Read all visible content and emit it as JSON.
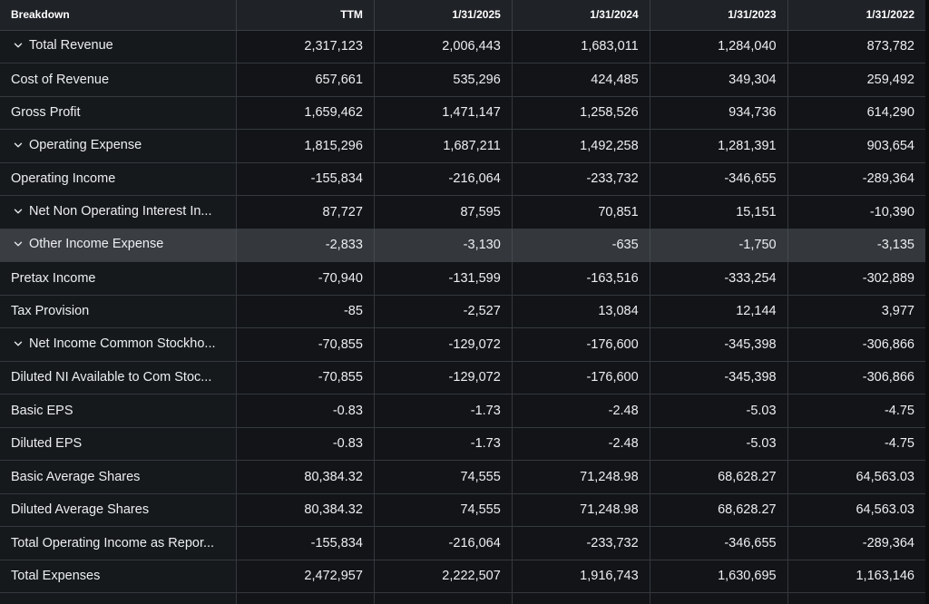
{
  "table": {
    "header": [
      "Breakdown",
      "TTM",
      "1/31/2025",
      "1/31/2024",
      "1/31/2023",
      "1/31/2022"
    ],
    "rows": [
      {
        "label": "Total Revenue",
        "expandable": true,
        "values": [
          "2,317,123",
          "2,006,443",
          "1,683,011",
          "1,284,040",
          "873,782"
        ]
      },
      {
        "label": "Cost of Revenue",
        "expandable": false,
        "values": [
          "657,661",
          "535,296",
          "424,485",
          "349,304",
          "259,492"
        ]
      },
      {
        "label": "Gross Profit",
        "expandable": false,
        "values": [
          "1,659,462",
          "1,471,147",
          "1,258,526",
          "934,736",
          "614,290"
        ]
      },
      {
        "label": "Operating Expense",
        "expandable": true,
        "values": [
          "1,815,296",
          "1,687,211",
          "1,492,258",
          "1,281,391",
          "903,654"
        ]
      },
      {
        "label": "Operating Income",
        "expandable": false,
        "values": [
          "-155,834",
          "-216,064",
          "-233,732",
          "-346,655",
          "-289,364"
        ]
      },
      {
        "label": "Net Non Operating Interest In...",
        "expandable": true,
        "values": [
          "87,727",
          "87,595",
          "70,851",
          "15,151",
          "-10,390"
        ]
      },
      {
        "label": "Other Income Expense",
        "expandable": true,
        "highlight": true,
        "values": [
          "-2,833",
          "-3,130",
          "-635",
          "-1,750",
          "-3,135"
        ]
      },
      {
        "label": "Pretax Income",
        "expandable": false,
        "values": [
          "-70,940",
          "-131,599",
          "-163,516",
          "-333,254",
          "-302,889"
        ]
      },
      {
        "label": "Tax Provision",
        "expandable": false,
        "values": [
          "-85",
          "-2,527",
          "13,084",
          "12,144",
          "3,977"
        ]
      },
      {
        "label": "Net Income Common Stockho...",
        "expandable": true,
        "values": [
          "-70,855",
          "-129,072",
          "-176,600",
          "-345,398",
          "-306,866"
        ]
      },
      {
        "label": "Diluted NI Available to Com Stoc...",
        "expandable": false,
        "values": [
          "-70,855",
          "-129,072",
          "-176,600",
          "-345,398",
          "-306,866"
        ]
      },
      {
        "label": "Basic EPS",
        "expandable": false,
        "values": [
          "-0.83",
          "-1.73",
          "-2.48",
          "-5.03",
          "-4.75"
        ]
      },
      {
        "label": "Diluted EPS",
        "expandable": false,
        "values": [
          "-0.83",
          "-1.73",
          "-2.48",
          "-5.03",
          "-4.75"
        ]
      },
      {
        "label": "Basic Average Shares",
        "expandable": false,
        "values": [
          "80,384.32",
          "74,555",
          "71,248.98",
          "68,628.27",
          "64,563.03"
        ]
      },
      {
        "label": "Diluted Average Shares",
        "expandable": false,
        "values": [
          "80,384.32",
          "74,555",
          "71,248.98",
          "68,628.27",
          "64,563.03"
        ]
      },
      {
        "label": "Total Operating Income as Repor...",
        "expandable": false,
        "values": [
          "-155,834",
          "-216,064",
          "-233,732",
          "-346,655",
          "-289,364"
        ]
      },
      {
        "label": "Total Expenses",
        "expandable": false,
        "values": [
          "2,472,957",
          "2,222,507",
          "1,916,743",
          "1,630,695",
          "1,163,146"
        ]
      },
      {
        "label": "",
        "expandable": false,
        "values": [
          "",
          "",
          "",
          "",
          ""
        ]
      }
    ]
  },
  "icons": {
    "expand": "chevron-down-icon"
  },
  "colors": {
    "background": "#0b0d0f",
    "header_bg": "#1f2226",
    "row_bg": "#121417",
    "highlight_bg": "#34383d",
    "text": "#eceef0"
  }
}
